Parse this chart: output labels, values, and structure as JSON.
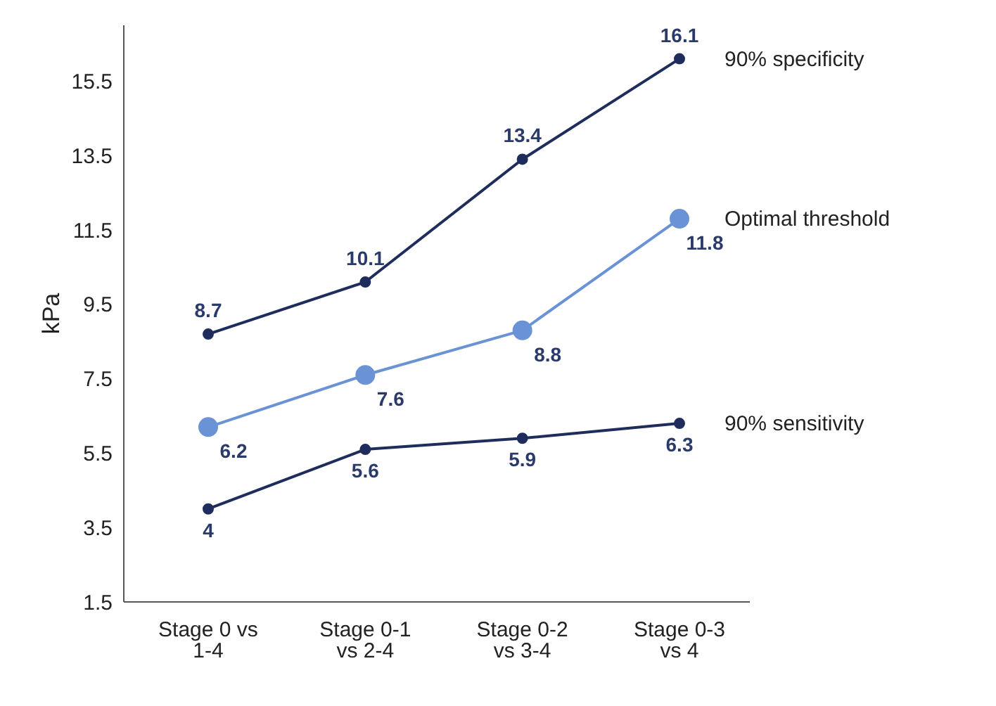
{
  "chart_data": {
    "type": "line",
    "ylabel": "kPa",
    "categories": [
      "Stage 0 vs 1-4",
      "Stage 0-1 vs 2-4",
      "Stage 0-2 vs 3-4",
      "Stage 0-3 vs 4"
    ],
    "series": [
      {
        "name": "90% specificity",
        "color": "#1f2d5c",
        "values": [
          8.7,
          10.1,
          13.4,
          16.1
        ]
      },
      {
        "name": "Optimal threshold",
        "color": "#6a93d6",
        "values": [
          6.2,
          7.6,
          8.8,
          11.8
        ]
      },
      {
        "name": "90% sensitivity",
        "color": "#1f2d5c",
        "values": [
          4,
          5.6,
          5.9,
          6.3
        ]
      }
    ],
    "ylim": [
      1.5,
      17
    ],
    "yticks": [
      1.5,
      3.5,
      5.5,
      7.5,
      9.5,
      11.5,
      13.5,
      15.5
    ],
    "grid": false,
    "legend": false,
    "marker": "circle",
    "line_style": "solid",
    "data_labels": true
  }
}
